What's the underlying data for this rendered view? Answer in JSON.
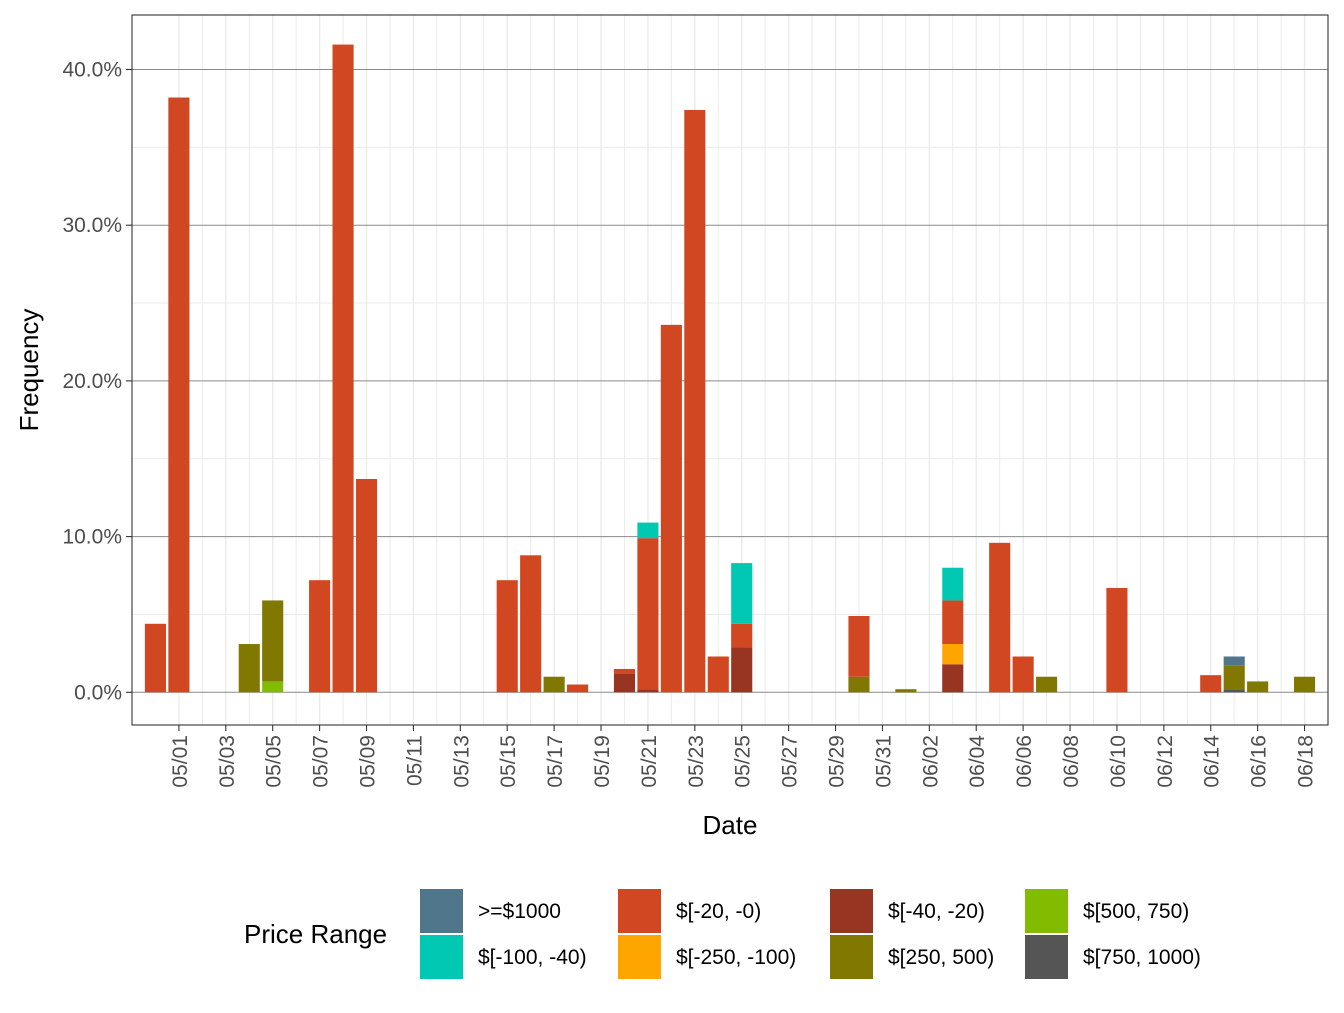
{
  "chart_data": {
    "type": "bar",
    "stacked": true,
    "xlabel": "Date",
    "ylabel": "Frequency",
    "ylim": [
      -0.021,
      0.435
    ],
    "y_ticks": [
      0.0,
      0.1,
      0.2,
      0.3,
      0.4
    ],
    "y_tick_labels": [
      "0.0%",
      "10.0%",
      "20.0%",
      "30.0%",
      "40.0%"
    ],
    "x_range": [
      "2020-04-29",
      "2020-06-19"
    ],
    "x_tick_labels": [
      "05/01",
      "05/03",
      "05/05",
      "05/07",
      "05/09",
      "05/11",
      "05/13",
      "05/15",
      "05/17",
      "05/19",
      "05/21",
      "05/23",
      "05/25",
      "05/27",
      "05/29",
      "05/31",
      "06/02",
      "06/04",
      "06/06",
      "06/08",
      "06/10",
      "06/12",
      "06/14",
      "06/16",
      "06/18"
    ],
    "x_tick_dates": [
      "2020-05-01",
      "2020-05-03",
      "2020-05-05",
      "2020-05-07",
      "2020-05-09",
      "2020-05-11",
      "2020-05-13",
      "2020-05-15",
      "2020-05-17",
      "2020-05-19",
      "2020-05-21",
      "2020-05-23",
      "2020-05-25",
      "2020-05-27",
      "2020-05-29",
      "2020-05-31",
      "2020-06-02",
      "2020-06-04",
      "2020-06-06",
      "2020-06-08",
      "2020-06-10",
      "2020-06-12",
      "2020-06-14",
      "2020-06-16",
      "2020-06-18"
    ],
    "grid": true,
    "legend": {
      "title": "Price Range",
      "placement": "bottom",
      "entries": [
        {
          "key": "ge1000",
          "label": ">=$1000",
          "color": "#50768C"
        },
        {
          "key": "m100_40",
          "label": "$[-100, -40)",
          "color": "#00C8B3"
        },
        {
          "key": "m20_0",
          "label": "$[-20, -0)",
          "color": "#D04721"
        },
        {
          "key": "m250_100",
          "label": "$[-250, -100)",
          "color": "#FFA500"
        },
        {
          "key": "m40_20",
          "label": "$[-40, -20)",
          "color": "#973422"
        },
        {
          "key": "p250_500",
          "label": "$[250, 500)",
          "color": "#807800"
        },
        {
          "key": "p500_750",
          "label": "$[500, 750)",
          "color": "#81BC00"
        },
        {
          "key": "p750_1000",
          "label": "$[750, 1000)",
          "color": "#555555"
        }
      ]
    },
    "stack_order": [
      "p750_1000",
      "p500_750",
      "p250_500",
      "m40_20",
      "m250_100",
      "m20_0",
      "m100_40",
      "ge1000"
    ],
    "bars": [
      {
        "date": "2020-04-30",
        "segments": {
          "m20_0": 0.044
        }
      },
      {
        "date": "2020-05-01",
        "segments": {
          "m20_0": 0.382
        }
      },
      {
        "date": "2020-05-04",
        "segments": {
          "p250_500": 0.031
        }
      },
      {
        "date": "2020-05-05",
        "segments": {
          "p500_750": 0.007,
          "p250_500": 0.052
        }
      },
      {
        "date": "2020-05-07",
        "segments": {
          "m20_0": 0.072
        }
      },
      {
        "date": "2020-05-08",
        "segments": {
          "m20_0": 0.416
        }
      },
      {
        "date": "2020-05-09",
        "segments": {
          "m20_0": 0.137
        }
      },
      {
        "date": "2020-05-15",
        "segments": {
          "m20_0": 0.072
        }
      },
      {
        "date": "2020-05-16",
        "segments": {
          "m20_0": 0.088
        }
      },
      {
        "date": "2020-05-17",
        "segments": {
          "p250_500": 0.01
        }
      },
      {
        "date": "2020-05-18",
        "segments": {
          "m20_0": 0.005
        }
      },
      {
        "date": "2020-05-20",
        "segments": {
          "m40_20": 0.012,
          "m20_0": 0.003
        }
      },
      {
        "date": "2020-05-21",
        "segments": {
          "m40_20": 0.002,
          "m20_0": 0.097,
          "m100_40": 0.01
        }
      },
      {
        "date": "2020-05-22",
        "segments": {
          "m20_0": 0.236
        }
      },
      {
        "date": "2020-05-23",
        "segments": {
          "m20_0": 0.374
        }
      },
      {
        "date": "2020-05-24",
        "segments": {
          "m20_0": 0.023
        }
      },
      {
        "date": "2020-05-25",
        "segments": {
          "m40_20": 0.029,
          "m20_0": 0.015,
          "m100_40": 0.039
        }
      },
      {
        "date": "2020-05-30",
        "segments": {
          "p250_500": 0.01,
          "m20_0": 0.039
        }
      },
      {
        "date": "2020-06-01",
        "segments": {
          "p250_500": 0.002
        }
      },
      {
        "date": "2020-06-03",
        "segments": {
          "m40_20": 0.018,
          "m250_100": 0.013,
          "m20_0": 0.028,
          "m100_40": 0.021
        }
      },
      {
        "date": "2020-06-05",
        "segments": {
          "m20_0": 0.096
        }
      },
      {
        "date": "2020-06-06",
        "segments": {
          "m20_0": 0.023
        }
      },
      {
        "date": "2020-06-07",
        "segments": {
          "p250_500": 0.01
        }
      },
      {
        "date": "2020-06-10",
        "segments": {
          "m20_0": 0.067
        }
      },
      {
        "date": "2020-06-14",
        "segments": {
          "m20_0": 0.011
        }
      },
      {
        "date": "2020-06-15",
        "segments": {
          "p750_1000": 0.002,
          "p250_500": 0.015,
          "ge1000": 0.006
        }
      },
      {
        "date": "2020-06-16",
        "segments": {
          "p250_500": 0.007
        }
      },
      {
        "date": "2020-06-18",
        "segments": {
          "p250_500": 0.01
        }
      }
    ]
  }
}
